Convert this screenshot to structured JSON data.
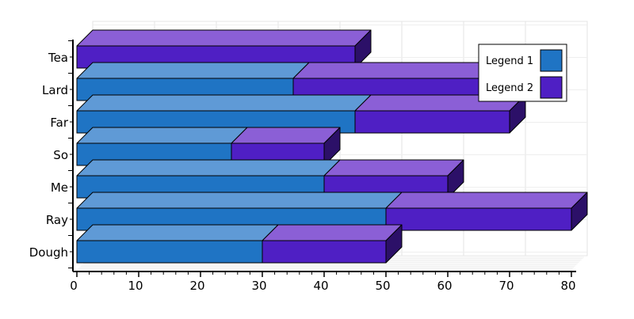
{
  "chart_data": {
    "type": "bar",
    "orientation": "horizontal",
    "stacked": true,
    "style": "3d",
    "categories": [
      "Dough",
      "Ray",
      "Me",
      "So",
      "Far",
      "Lard",
      "Tea"
    ],
    "series": [
      {
        "name": "Legend 1",
        "values": [
          30,
          50,
          40,
          25,
          45,
          35,
          0
        ],
        "color": "#1f74c4",
        "top_color": "#5f9ad6",
        "side_color": "#124a82"
      },
      {
        "name": "Legend 2",
        "values": [
          20,
          30,
          20,
          15,
          25,
          30,
          45
        ],
        "color": "#4f1fc4",
        "top_color": "#8b5fd6",
        "side_color": "#2c1068"
      }
    ],
    "x_ticks": [
      0,
      10,
      20,
      30,
      40,
      50,
      60,
      70,
      80
    ],
    "xlim": [
      0,
      80
    ],
    "grid": true,
    "legend_position": "top-right",
    "title": "",
    "xlabel": "",
    "ylabel": ""
  }
}
